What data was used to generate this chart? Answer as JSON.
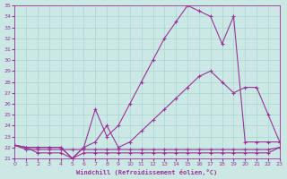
{
  "background_color": "#cce8e4",
  "grid_color": "#aad4d0",
  "line_color": "#993399",
  "xlim": [
    0,
    23
  ],
  "ylim": [
    21,
    35
  ],
  "xlabel": "Windchill (Refroidissement éolien,°C)",
  "xticks": [
    0,
    1,
    2,
    3,
    4,
    5,
    6,
    7,
    8,
    9,
    10,
    11,
    12,
    13,
    14,
    15,
    16,
    17,
    18,
    19,
    20,
    21,
    22,
    23
  ],
  "yticks": [
    21,
    22,
    23,
    24,
    25,
    26,
    27,
    28,
    29,
    30,
    31,
    32,
    33,
    34,
    35
  ],
  "line1_x": [
    0,
    1,
    2,
    3,
    4,
    5,
    6,
    7,
    8,
    9,
    10,
    11,
    12,
    13,
    14,
    15,
    16,
    17,
    18,
    19,
    20,
    21,
    22,
    23
  ],
  "line1_y": [
    22.2,
    21.8,
    21.8,
    21.8,
    21.8,
    21.8,
    21.8,
    21.8,
    21.8,
    21.8,
    21.8,
    21.8,
    21.8,
    21.8,
    21.8,
    21.8,
    21.8,
    21.8,
    21.8,
    21.8,
    21.8,
    21.8,
    21.8,
    22.0
  ],
  "line2_x": [
    0,
    1,
    2,
    3,
    4,
    5,
    6,
    7,
    8,
    9,
    10,
    11,
    12,
    13,
    14,
    15,
    16,
    17,
    18,
    19,
    20,
    21,
    22,
    23
  ],
  "line2_y": [
    22.2,
    22.0,
    21.5,
    21.5,
    21.5,
    21.0,
    21.5,
    21.5,
    21.5,
    21.5,
    21.5,
    21.5,
    21.5,
    21.5,
    21.5,
    21.5,
    21.5,
    21.5,
    21.5,
    21.5,
    21.5,
    21.5,
    21.5,
    22.0
  ],
  "line3_x": [
    0,
    1,
    2,
    3,
    4,
    5,
    6,
    7,
    8,
    9,
    10,
    11,
    12,
    13,
    14,
    15,
    16,
    17,
    18,
    19,
    20,
    21,
    22,
    23
  ],
  "line3_y": [
    22.2,
    22.0,
    22.0,
    22.0,
    22.0,
    21.0,
    22.0,
    22.5,
    24.0,
    22.0,
    22.5,
    23.5,
    24.5,
    25.5,
    26.5,
    27.5,
    28.5,
    29.0,
    28.0,
    27.0,
    27.5,
    27.5,
    25.0,
    22.5
  ],
  "line4_x": [
    0,
    1,
    2,
    3,
    4,
    5,
    6,
    7,
    8,
    9,
    10,
    11,
    12,
    13,
    14,
    15,
    16,
    17,
    18,
    19,
    20,
    21,
    22,
    23
  ],
  "line4_y": [
    22.2,
    22.0,
    22.0,
    22.0,
    22.0,
    21.0,
    22.0,
    25.5,
    23.0,
    24.0,
    26.0,
    28.0,
    30.0,
    32.0,
    33.5,
    35.0,
    34.5,
    34.0,
    31.5,
    34.0,
    22.5,
    22.5,
    22.5,
    22.5
  ]
}
